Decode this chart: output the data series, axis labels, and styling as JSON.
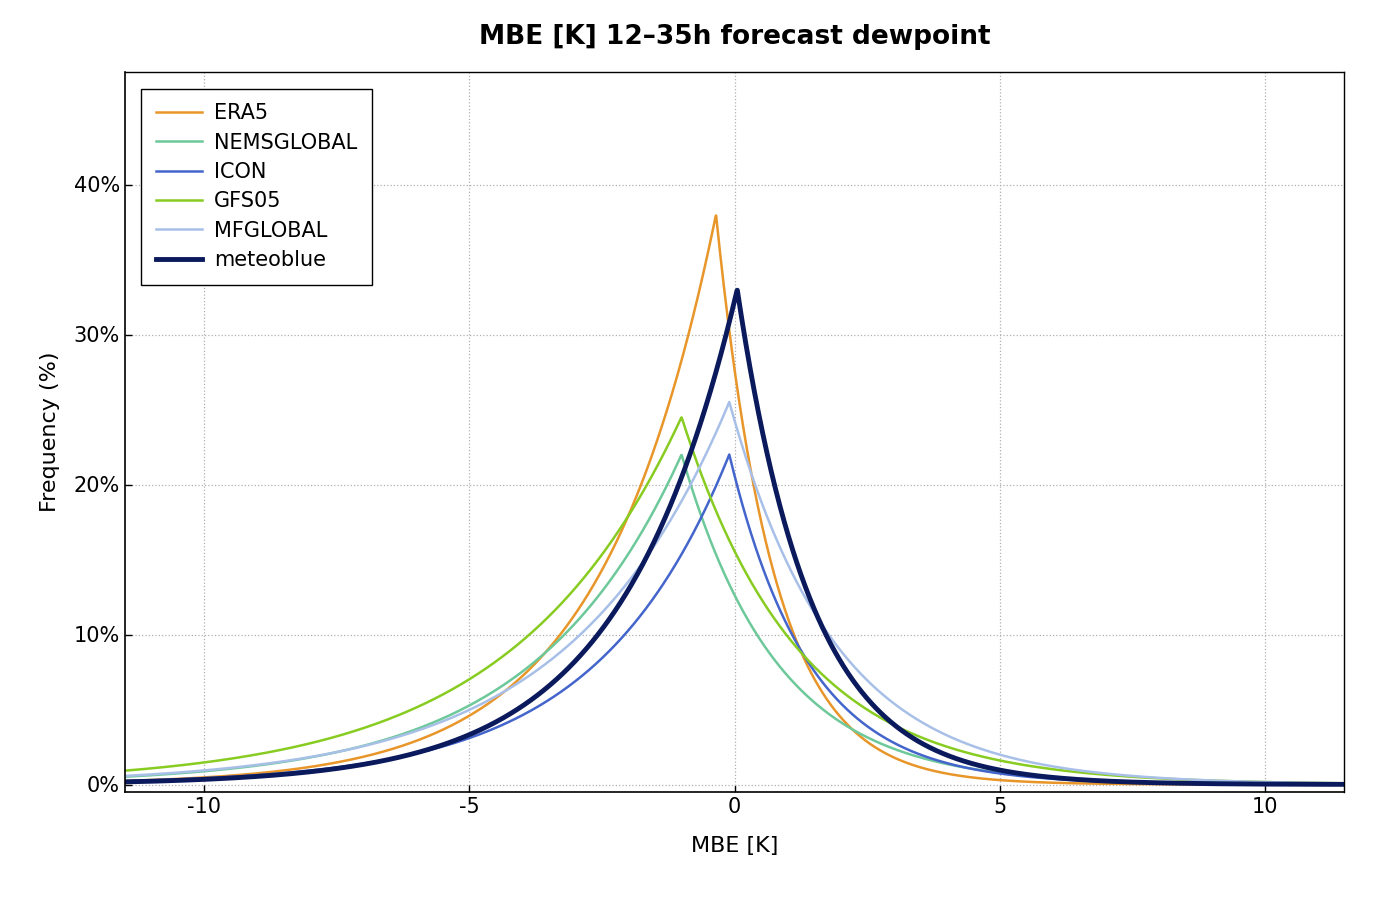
{
  "title": "MBE [K] 12–35h forecast dewpoint",
  "xlabel": "MBE [K]",
  "ylabel": "Frequency (%)",
  "xlim": [
    -11.5,
    11.5
  ],
  "ylim": [
    -0.5,
    47.5
  ],
  "xticks": [
    -10,
    -5,
    0,
    5,
    10
  ],
  "yticks": [
    0,
    10,
    20,
    30,
    40
  ],
  "ytick_labels": [
    "0%",
    "10%",
    "20%",
    "30%",
    "40%"
  ],
  "background_color": "#ffffff",
  "grid_color": "#b0b0b0",
  "title_fontsize": 19,
  "label_fontsize": 16,
  "tick_fontsize": 15,
  "legend_fontsize": 15,
  "series": [
    {
      "name": "ERA5",
      "color": "#E8962A",
      "lw": 1.8,
      "mode": -0.35,
      "scale_l": 2.2,
      "scale_r": 1.1,
      "peak": 38.0
    },
    {
      "name": "NEMSGLOBAL",
      "color": "#6DC89A",
      "lw": 1.8,
      "mode": -1.0,
      "scale_l": 2.8,
      "scale_r": 1.8,
      "peak": 22.0
    },
    {
      "name": "ICON",
      "color": "#4466CC",
      "lw": 1.8,
      "mode": -0.1,
      "scale_l": 2.5,
      "scale_r": 1.5,
      "peak": 22.0
    },
    {
      "name": "GFS05",
      "color": "#88CC22",
      "lw": 1.8,
      "mode": -1.0,
      "scale_l": 3.2,
      "scale_r": 2.2,
      "peak": 24.5
    },
    {
      "name": "MFGLOBAL",
      "color": "#A8C0E8",
      "lw": 1.8,
      "mode": -0.1,
      "scale_l": 3.0,
      "scale_r": 2.0,
      "peak": 25.5
    },
    {
      "name": "meteoblue",
      "color": "#0A1A5C",
      "lw": 3.5,
      "mode": 0.05,
      "scale_l": 2.2,
      "scale_r": 1.4,
      "peak": 33.0
    }
  ]
}
